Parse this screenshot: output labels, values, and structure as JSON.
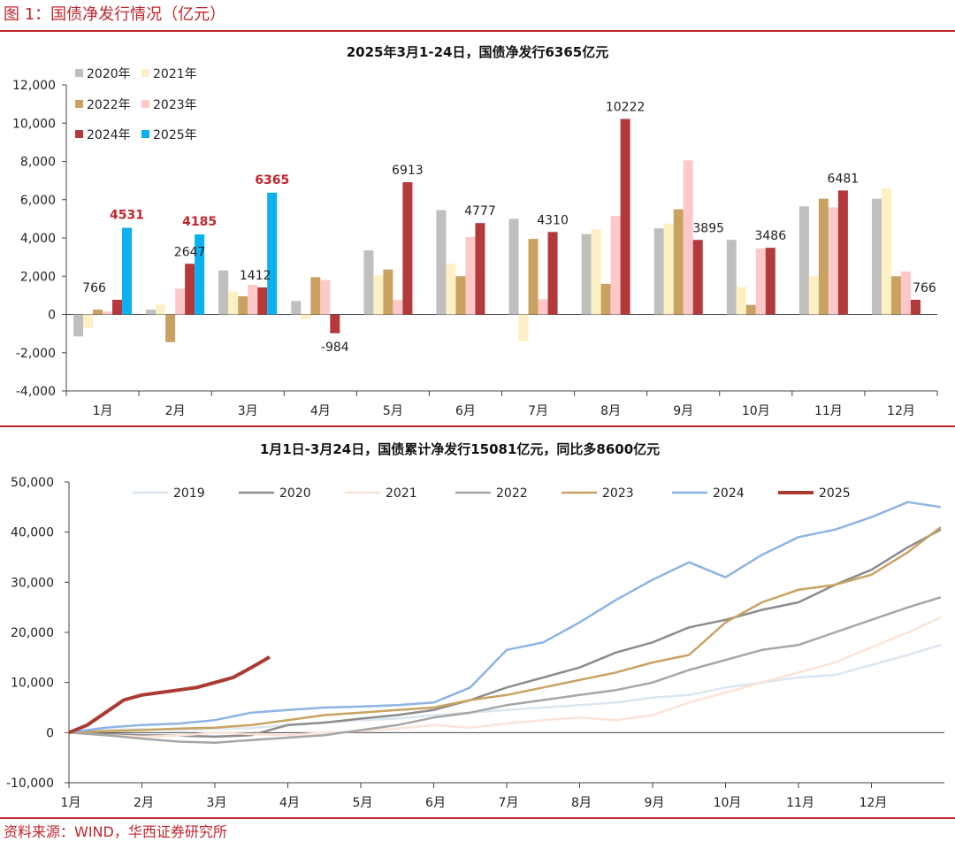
{
  "figure_title": "图 1：国债净发行情况（亿元）",
  "source_note": "资料来源：WIND，华西证券研究所",
  "chart_data": [
    {
      "type": "bar",
      "title": "2025年3月1-24日，国债净发行6365亿元",
      "categories": [
        "1月",
        "2月",
        "3月",
        "4月",
        "5月",
        "6月",
        "7月",
        "8月",
        "9月",
        "10月",
        "11月",
        "12月"
      ],
      "ylim": [
        -4000,
        12000
      ],
      "yticks": [
        -4000,
        -2000,
        0,
        2000,
        4000,
        6000,
        8000,
        10000,
        12000
      ],
      "ytick_labels": [
        "-4,000",
        "-2,000",
        "0",
        "2,000",
        "4,000",
        "6,000",
        "8,000",
        "10,000",
        "12,000"
      ],
      "legend_position": "top-left",
      "grid": false,
      "series": [
        {
          "name": "2020年",
          "color": "#bfbfbf",
          "values": [
            -1150,
            250,
            2300,
            700,
            3350,
            5450,
            5000,
            4200,
            4500,
            3900,
            5650,
            6050
          ]
        },
        {
          "name": "2021年",
          "color": "#fdf0c4",
          "values": [
            -700,
            500,
            1200,
            -250,
            2050,
            2650,
            -1400,
            4450,
            4750,
            1450,
            2000,
            6600
          ]
        },
        {
          "name": "2022年",
          "color": "#c9a262",
          "values": [
            250,
            -1450,
            950,
            1950,
            2350,
            2000,
            3950,
            1600,
            5500,
            500,
            6050,
            2000
          ]
        },
        {
          "name": "2023年",
          "color": "#fdc8c8",
          "values": [
            150,
            1350,
            1550,
            1800,
            750,
            4050,
            800,
            5150,
            8050,
            3450,
            5600,
            2250
          ]
        },
        {
          "name": "2024年",
          "color": "#b3393b",
          "values": [
            766,
            2647,
            1412,
            -984,
            6913,
            4777,
            4310,
            10222,
            3895,
            3486,
            6481,
            766
          ]
        },
        {
          "name": "2025年",
          "color": "#0ab0f0",
          "values": [
            4531,
            4185,
            6365,
            null,
            null,
            null,
            null,
            null,
            null,
            null,
            null,
            null
          ]
        }
      ],
      "data_labels": [
        {
          "series": "2024年",
          "month": "1月",
          "text": "766"
        },
        {
          "series": "2024年",
          "month": "2月",
          "text": "2647"
        },
        {
          "series": "2024年",
          "month": "3月",
          "text": "1412"
        },
        {
          "series": "2024年",
          "month": "4月",
          "text": "-984"
        },
        {
          "series": "2024年",
          "month": "5月",
          "text": "6913"
        },
        {
          "series": "2024年",
          "month": "6月",
          "text": "4777"
        },
        {
          "series": "2024年",
          "month": "7月",
          "text": "4310"
        },
        {
          "series": "2024年",
          "month": "8月",
          "text": "10222"
        },
        {
          "series": "2024年",
          "month": "9月",
          "text": "3895"
        },
        {
          "series": "2024年",
          "month": "10月",
          "text": "3486"
        },
        {
          "series": "2024年",
          "month": "11月",
          "text": "6481"
        },
        {
          "series": "2024年",
          "month": "12月",
          "text": "766"
        },
        {
          "series": "2025年",
          "month": "1月",
          "text": "4531",
          "color": "#c0262d",
          "bold": true
        },
        {
          "series": "2025年",
          "month": "2月",
          "text": "4185",
          "color": "#c0262d",
          "bold": true
        },
        {
          "series": "2025年",
          "month": "3月",
          "text": "6365",
          "color": "#c0262d",
          "bold": true
        }
      ]
    },
    {
      "type": "line",
      "title": "1月1日-3月24日，国债累计净发行15081亿元，同比多8600亿元",
      "x_labels": [
        "1月",
        "2月",
        "3月",
        "4月",
        "5月",
        "6月",
        "7月",
        "8月",
        "9月",
        "10月",
        "11月",
        "12月"
      ],
      "ylim": [
        -10000,
        50000
      ],
      "yticks": [
        -10000,
        0,
        10000,
        20000,
        30000,
        40000,
        50000
      ],
      "ytick_labels": [
        "-10,000",
        "0",
        "10,000",
        "20,000",
        "30,000",
        "40,000",
        "50,000"
      ],
      "legend_position": "top",
      "grid": false,
      "series": [
        {
          "name": "2019",
          "color": "#dce6f0",
          "width": 2.5,
          "x": [
            0,
            0.5,
            1,
            1.5,
            2,
            2.5,
            3,
            3.5,
            4,
            4.5,
            5,
            5.5,
            6,
            6.5,
            7,
            7.5,
            8,
            8.5,
            9,
            9.5,
            10,
            10.5,
            11,
            11.5,
            11.95
          ],
          "y": [
            0,
            500,
            700,
            500,
            800,
            900,
            1500,
            2000,
            2500,
            2800,
            3500,
            4000,
            4500,
            5000,
            5500,
            6000,
            7000,
            7500,
            9000,
            10000,
            11000,
            11500,
            13500,
            15500,
            17500
          ]
        },
        {
          "name": "2020",
          "color": "#8c8c8c",
          "width": 2.5,
          "x": [
            0,
            0.5,
            1,
            1.5,
            2,
            2.5,
            3,
            3.5,
            4,
            4.5,
            5,
            5.5,
            6,
            6.5,
            7,
            7.5,
            8,
            8.5,
            9,
            9.5,
            10,
            10.5,
            11,
            11.5,
            11.95
          ],
          "y": [
            0,
            -300,
            -500,
            -600,
            -800,
            -500,
            1500,
            2000,
            2800,
            3500,
            4500,
            6500,
            9000,
            11000,
            13000,
            16000,
            18000,
            21000,
            22500,
            24500,
            26000,
            29500,
            32500,
            37000,
            40500
          ]
        },
        {
          "name": "2021",
          "color": "#fbe3d6",
          "width": 2.5,
          "x": [
            0,
            0.5,
            1,
            1.5,
            2,
            2.5,
            3,
            3.5,
            4,
            4.5,
            5,
            5.5,
            6,
            6.5,
            7,
            7.5,
            8,
            8.5,
            9,
            9.5,
            10,
            10.5,
            11,
            11.5,
            11.95
          ],
          "y": [
            0,
            -500,
            -800,
            -600,
            0,
            -300,
            -500,
            0,
            300,
            800,
            1500,
            1000,
            1800,
            2500,
            3000,
            2500,
            3500,
            6000,
            8000,
            10000,
            12000,
            14000,
            17000,
            20000,
            23000
          ]
        },
        {
          "name": "2022",
          "color": "#a6a6a6",
          "width": 2.5,
          "x": [
            0,
            0.5,
            1,
            1.5,
            2,
            2.5,
            3,
            3.5,
            4,
            4.5,
            5,
            5.5,
            6,
            6.5,
            7,
            7.5,
            8,
            8.5,
            9,
            9.5,
            10,
            10.5,
            11,
            11.5,
            11.95
          ],
          "y": [
            0,
            -500,
            -1200,
            -1800,
            -2000,
            -1500,
            -1000,
            -500,
            500,
            1500,
            3000,
            4000,
            5500,
            6500,
            7500,
            8500,
            10000,
            12500,
            14500,
            16500,
            17500,
            20000,
            22500,
            25000,
            27000
          ]
        },
        {
          "name": "2023",
          "color": "#c9a262",
          "width": 2.5,
          "x": [
            0,
            0.5,
            1,
            1.5,
            2,
            2.5,
            3,
            3.5,
            4,
            4.5,
            5,
            5.5,
            6,
            6.5,
            7,
            7.5,
            8,
            8.5,
            9,
            9.5,
            10,
            10.5,
            11,
            11.5,
            11.95
          ],
          "y": [
            0,
            300,
            500,
            800,
            1000,
            1500,
            2500,
            3500,
            4000,
            4500,
            5000,
            6500,
            7500,
            9000,
            10500,
            12000,
            14000,
            15500,
            22000,
            26000,
            28500,
            29500,
            31500,
            36000,
            41000
          ]
        },
        {
          "name": "2024",
          "color": "#8eb4e3",
          "width": 2.5,
          "x": [
            0,
            0.5,
            1,
            1.5,
            2,
            2.5,
            3,
            3.5,
            4,
            4.5,
            5,
            5.5,
            6,
            6.5,
            7,
            7.5,
            8,
            8.5,
            9,
            9.5,
            10,
            10.5,
            11,
            11.5,
            11.95
          ],
          "y": [
            0,
            1000,
            1500,
            1800,
            2500,
            4000,
            4500,
            5000,
            5200,
            5500,
            6000,
            9000,
            16500,
            18000,
            22000,
            26500,
            30500,
            34000,
            31000,
            35500,
            39000,
            40500,
            43000,
            46000,
            45000
          ]
        },
        {
          "name": "2025",
          "color": "#a93a34",
          "width": 4,
          "x": [
            0,
            0.25,
            0.5,
            0.75,
            1,
            1.25,
            1.5,
            1.75,
            2,
            2.25,
            2.5,
            2.75
          ],
          "y": [
            0,
            1500,
            4000,
            6500,
            7500,
            8000,
            8500,
            9000,
            10000,
            11000,
            13000,
            15081
          ]
        }
      ]
    }
  ]
}
